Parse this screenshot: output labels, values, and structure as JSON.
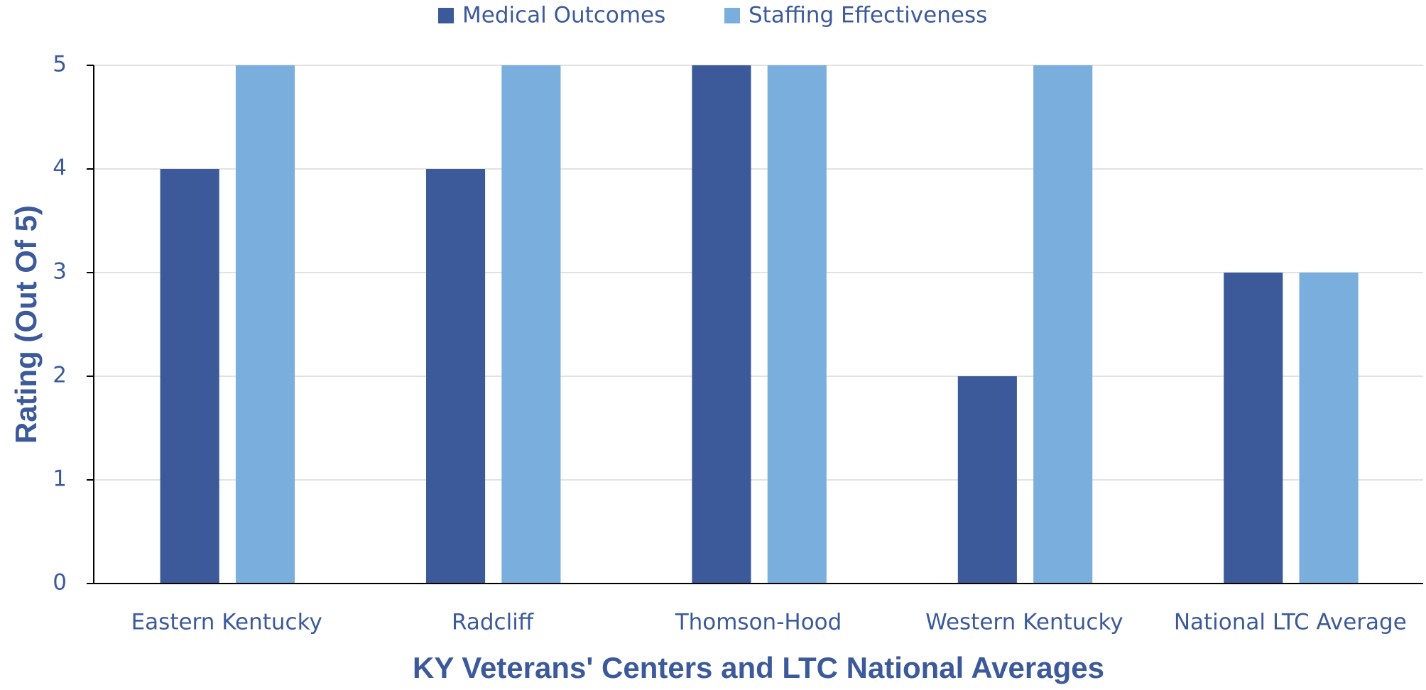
{
  "chart_data": {
    "type": "bar",
    "categories": [
      "Eastern Kentucky",
      "Radcliff",
      "Thomson-Hood",
      "Western Kentucky",
      "National LTC Average"
    ],
    "series": [
      {
        "name": "Medical Outcomes",
        "color": "#3c5a99",
        "values": [
          4,
          4,
          5,
          2,
          3
        ]
      },
      {
        "name": "Staffing Effectiveness",
        "color": "#7aaedd",
        "values": [
          5,
          5,
          5,
          5,
          3
        ]
      }
    ],
    "x_label": "KY Veterans' Centers and LTC National Averages",
    "y_label": "Rating (Out Of 5)",
    "ylim": [
      0,
      5
    ],
    "yticks": [
      0,
      1,
      2,
      3,
      4,
      5
    ],
    "grid": true,
    "legend": "top"
  }
}
